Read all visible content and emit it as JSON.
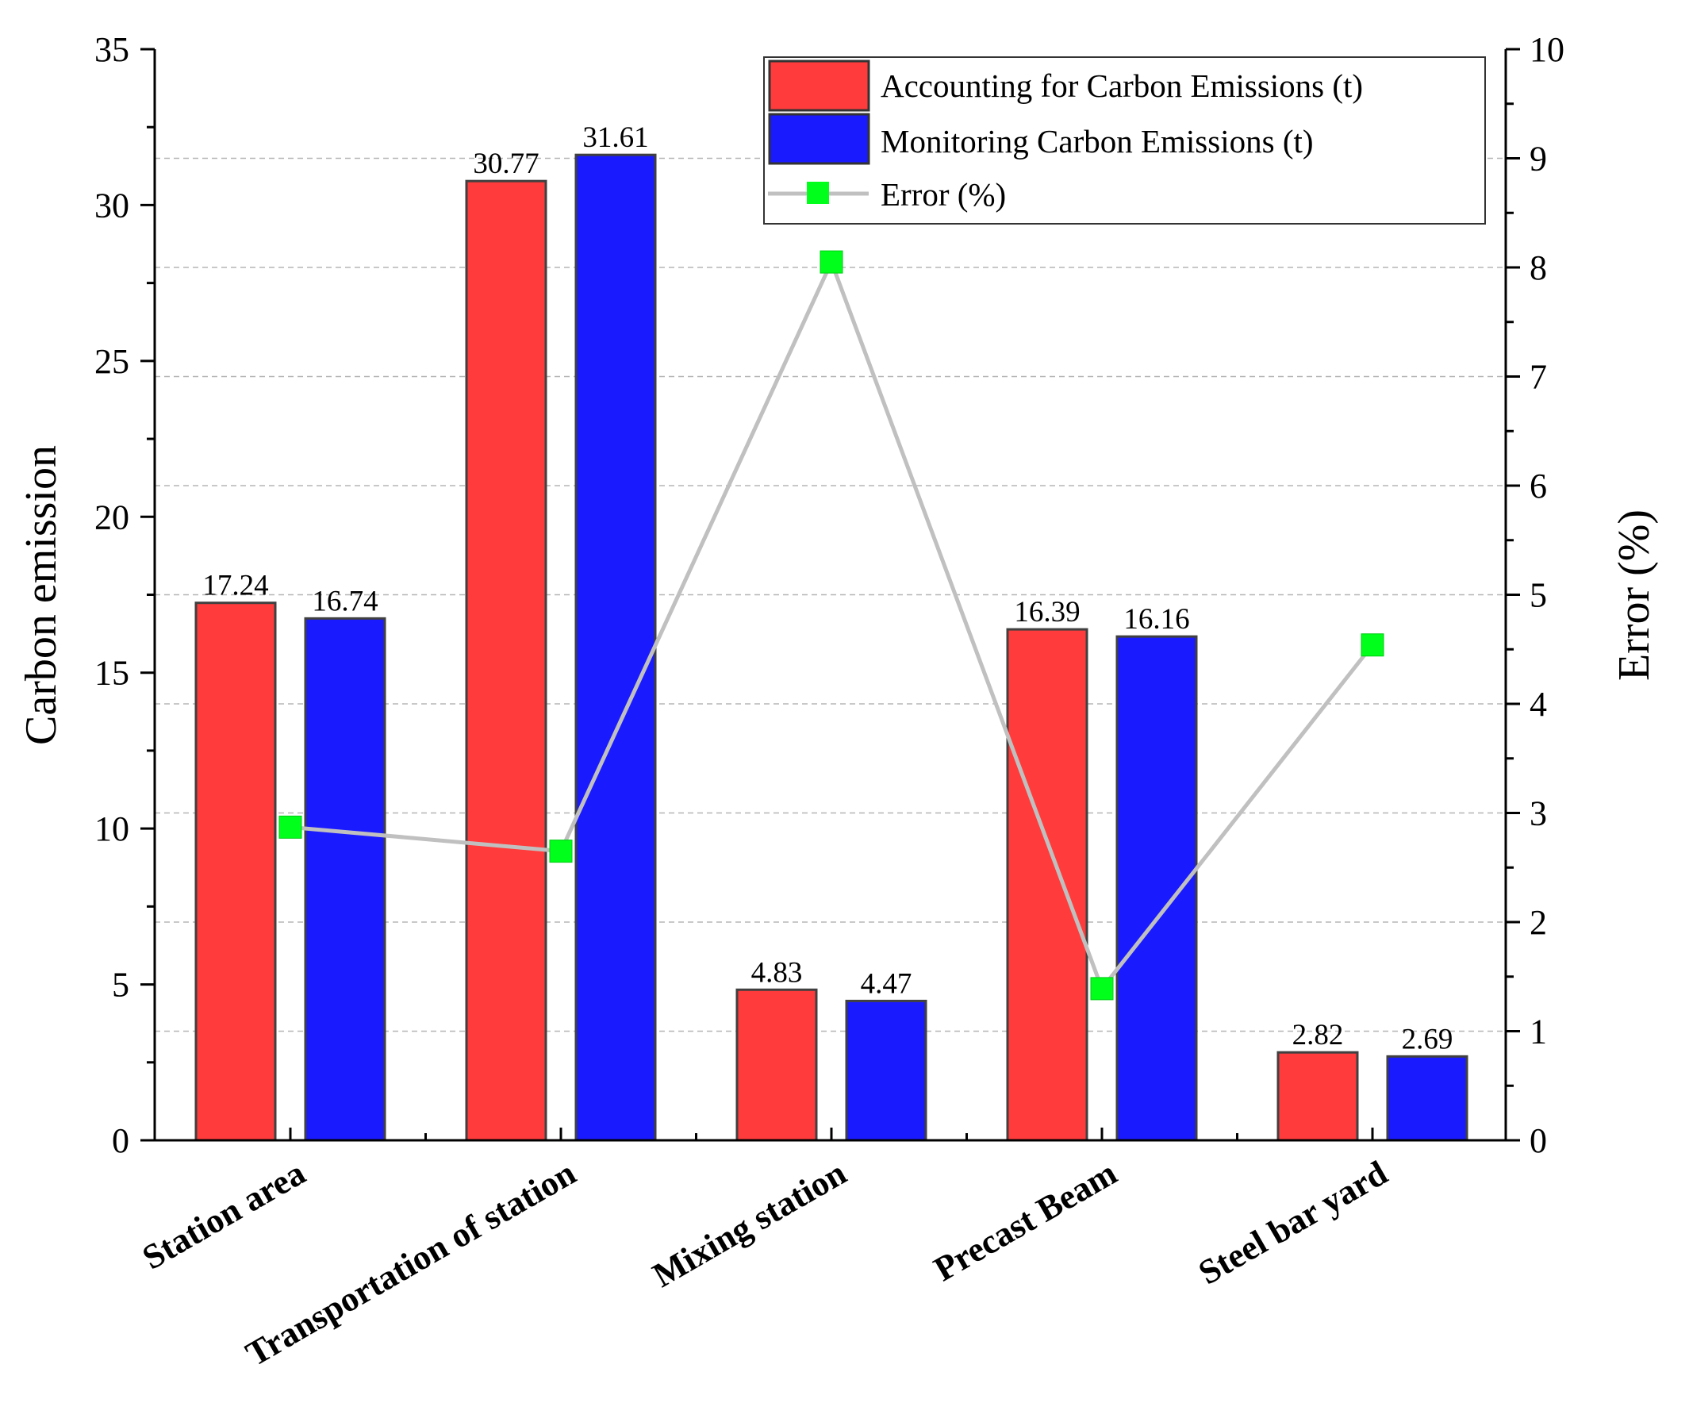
{
  "chart_data": {
    "type": "bar",
    "categories": [
      "Station area",
      "Transportation of station",
      "Mixing station",
      "Precast Beam",
      "Steel bar yard"
    ],
    "series": [
      {
        "name": "Accounting for Carbon Emissions (t)",
        "axis": "left",
        "kind": "bar",
        "color": "#FF3B3B",
        "values": [
          17.24,
          30.77,
          4.83,
          16.39,
          2.82
        ]
      },
      {
        "name": "Monitoring Carbon Emissions (t)",
        "axis": "left",
        "kind": "bar",
        "color": "#1A1AFF",
        "values": [
          16.74,
          31.61,
          4.47,
          16.16,
          2.69
        ]
      },
      {
        "name": "Error (%)",
        "axis": "right",
        "kind": "line",
        "color": "#00FF1A",
        "line_color": "#C0C0C0",
        "values": [
          2.87,
          2.65,
          8.05,
          1.39,
          4.54
        ]
      }
    ],
    "bar_labels": [
      [
        "17.24",
        "30.77",
        "4.83",
        "16.39",
        "2.82"
      ],
      [
        "16.74",
        "31.61",
        "4.47",
        "16.16",
        "2.69"
      ]
    ],
    "ylabel": "Carbon emission",
    "y2label": "Error (%)",
    "ylim": [
      0,
      35
    ],
    "y2lim": [
      0,
      10
    ],
    "yticks": [
      "0",
      "5",
      "10",
      "15",
      "20",
      "25",
      "30",
      "35"
    ],
    "y2ticks": [
      "0",
      "1",
      "2",
      "3",
      "4",
      "5",
      "6",
      "7",
      "8",
      "9",
      "10"
    ],
    "grid": "horizontal dashed",
    "legend_position": "top-right"
  }
}
